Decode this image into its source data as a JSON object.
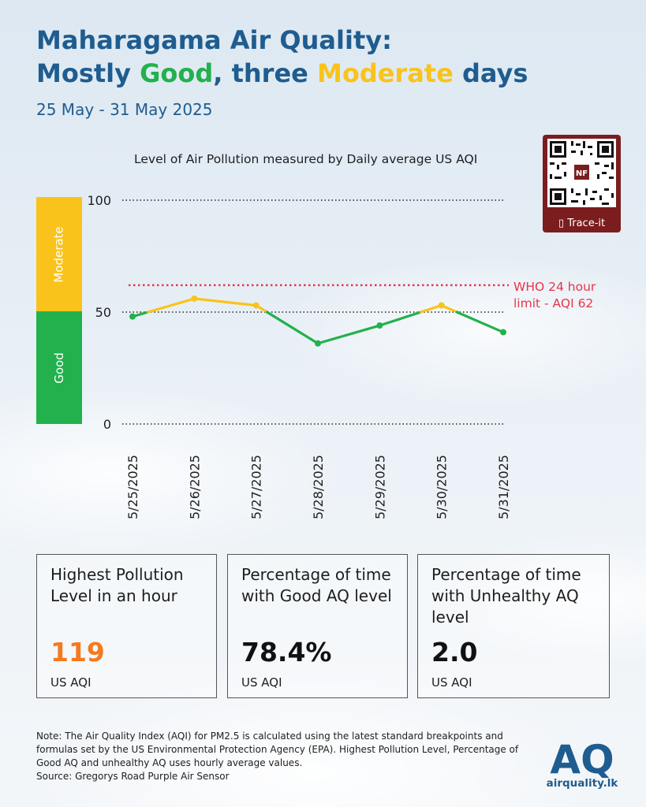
{
  "header": {
    "title_line1": "Maharagama Air Quality:",
    "title_pre": "Mostly ",
    "title_good": "Good",
    "title_mid": ", three ",
    "title_moderate": "Moderate",
    "title_post": " days",
    "date_range": "25 May - 31 May 2025"
  },
  "colors": {
    "title": "#1f5c8f",
    "good": "#22b14c",
    "moderate": "#f9c31b",
    "who_limit": "#e8354b",
    "highlight": "#f47a20",
    "qr_frame": "#7b1d1e"
  },
  "chart_data": {
    "type": "line",
    "title": "Level of Air Pollution measured by Daily average US AQI",
    "x": [
      "5/25/2025",
      "5/26/2025",
      "5/27/2025",
      "5/28/2025",
      "5/29/2025",
      "5/30/2025",
      "5/31/2025"
    ],
    "values": [
      48,
      56,
      53,
      36,
      44,
      53,
      41
    ],
    "ylim": [
      0,
      100
    ],
    "yticks": [
      0,
      50,
      100
    ],
    "xlabel": "",
    "ylabel": "",
    "bands": [
      {
        "label": "Good",
        "range": [
          0,
          50
        ],
        "color": "#22b14c"
      },
      {
        "label": "Moderate",
        "range": [
          50,
          100
        ],
        "color": "#f9c31b"
      }
    ],
    "reference_line": {
      "value": 62,
      "label_line1": "WHO 24 hour",
      "label_line2": "limit - AQI 62",
      "color": "#e8354b"
    },
    "grid": "dotted horizontal at ticks",
    "legend": "none"
  },
  "qr": {
    "label": "Trace-it",
    "badge": "NF"
  },
  "stats": [
    {
      "title": "Highest Pollution Level in an hour",
      "value": "119",
      "unit": "US AQI",
      "value_color": "#f47a20"
    },
    {
      "title": "Percentage of time with Good AQ level",
      "value": "78.4%",
      "unit": "US AQI",
      "value_color": "#111111"
    },
    {
      "title": "Percentage of time with Unhealthy AQ level",
      "value": "2.0",
      "unit": "US AQI",
      "value_color": "#111111"
    }
  ],
  "footer": {
    "note": "Note: The Air Quality Index (AQI) for PM2.5 is calculated using the latest standard breakpoints and formulas set by the US Environmental Protection Agency (EPA). Highest Pollution Level, Percentage of Good AQ and unhealthy AQ uses hourly average values.",
    "source": "Source: Gregorys Road Purple Air Sensor",
    "logo_text": "AQ",
    "site": "airquality.lk"
  }
}
